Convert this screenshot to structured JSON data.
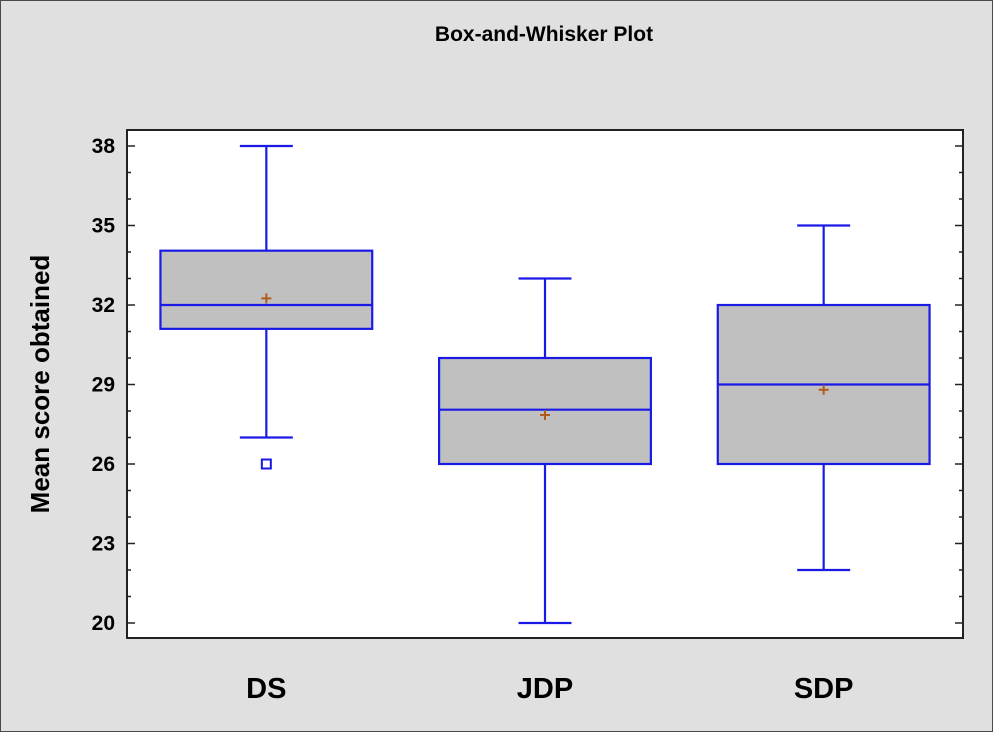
{
  "chart_data": {
    "type": "box",
    "title": "Box-and-Whisker Plot",
    "xlabel": "",
    "ylabel": "Mean score obtained",
    "ylim": [
      19.5,
      39
    ],
    "yticks": [
      20,
      23,
      26,
      29,
      32,
      35,
      38
    ],
    "categories": [
      "DS",
      "JDP",
      "SDP"
    ],
    "boxes": [
      {
        "category": "DS",
        "whisker_low": 27,
        "q1": 31.1,
        "median": 32,
        "q3": 34.05,
        "whisker_high": 38,
        "mean": 32.25,
        "outliers": [
          26
        ]
      },
      {
        "category": "JDP",
        "whisker_low": 20,
        "q1": 26,
        "median": 28.05,
        "q3": 30,
        "whisker_high": 33,
        "mean": 27.85,
        "outliers": []
      },
      {
        "category": "SDP",
        "whisker_low": 22,
        "q1": 26,
        "median": 29,
        "q3": 32,
        "whisker_high": 35,
        "mean": 28.8,
        "outliers": []
      }
    ],
    "colors": {
      "box_fill": "#c0c0c0",
      "box_stroke": "#1a1ae6",
      "mean_marker": "#b05a1e",
      "plot_background": "#ffffff",
      "figure_background": "#e0e0e0"
    },
    "grid": false
  }
}
